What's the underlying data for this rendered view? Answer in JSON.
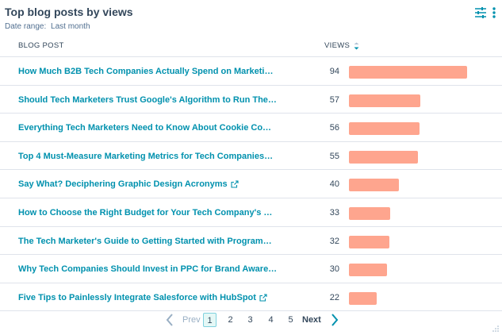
{
  "widget": {
    "title": "Top blog posts by views",
    "date_range_label": "Date range:",
    "date_range_value": "Last month"
  },
  "icons": {
    "filter": "sliders-icon",
    "menu": "vertical-ellipsis-icon",
    "sort": "sort-descending-icon",
    "external": "external-link-icon",
    "prev": "chevron-left-icon",
    "next": "chevron-right-icon",
    "resize": "resize-handle-icon"
  },
  "colors": {
    "accent": "#0091ae",
    "bar": "#fea58e",
    "text": "#33475b"
  },
  "table": {
    "columns": [
      "BLOG POST",
      "VIEWS"
    ],
    "sorted_by": "VIEWS",
    "rows": [
      {
        "post": "How Much B2B Tech Companies Actually Spend on Marketi…",
        "views": "94",
        "external": false
      },
      {
        "post": "Should Tech Marketers Trust Google's Algorithm to Run The…",
        "views": "57",
        "external": false
      },
      {
        "post": "Everything Tech Marketers Need to Know About Cookie Co…",
        "views": "56",
        "external": false
      },
      {
        "post": "Top 4 Must-Measure Marketing Metrics for Tech Companies…",
        "views": "55",
        "external": false
      },
      {
        "post": "Say What? Deciphering Graphic Design Acronyms",
        "views": "40",
        "external": true
      },
      {
        "post": "How to Choose the Right Budget for Your Tech Company's …",
        "views": "33",
        "external": false
      },
      {
        "post": "The Tech Marketer's Guide to Getting Started with Program…",
        "views": "32",
        "external": false
      },
      {
        "post": "Why Tech Companies Should Invest in PPC for Brand Aware…",
        "views": "30",
        "external": false
      },
      {
        "post": "Five Tips to Painlessly Integrate Salesforce with HubSpot",
        "views": "22",
        "external": true
      }
    ],
    "bar_max_value": 94
  },
  "pagination": {
    "prev_label": "Prev",
    "pages": [
      "1",
      "2",
      "3",
      "4",
      "5"
    ],
    "current_page": "1",
    "next_label": "Next"
  }
}
